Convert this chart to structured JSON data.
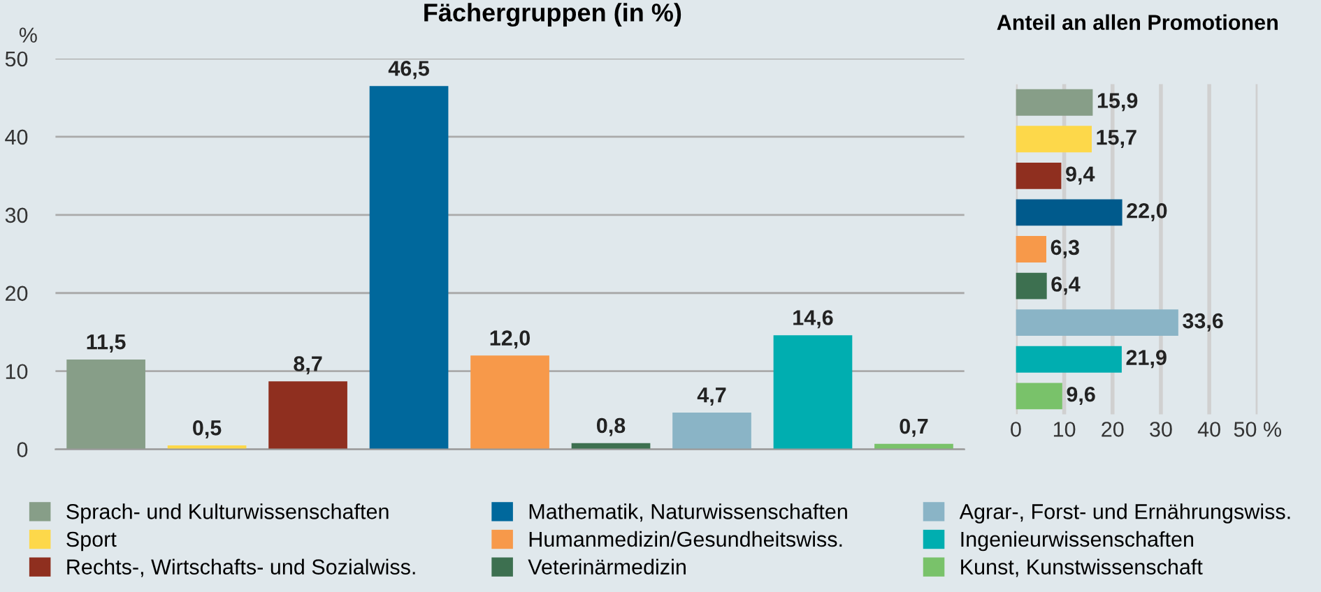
{
  "chart_data": [
    {
      "type": "bar",
      "title": "Fächergruppen (in %)",
      "ylabel": "%",
      "categories": [
        null
      ],
      "ylim": [
        0,
        50
      ],
      "yticks": [
        0,
        10,
        20,
        30,
        40,
        50
      ],
      "grid": "y",
      "legend": "bottom",
      "series": [
        {
          "name": "Sprach- und Kulturwissenschaften",
          "color": "#879e88",
          "values": [
            11.5
          ],
          "value_labels": [
            "11,5"
          ]
        },
        {
          "name": "Sport",
          "color": "#fdd84a",
          "values": [
            0.5
          ],
          "value_labels": [
            "0,5"
          ]
        },
        {
          "name": "Rechts-, Wirtschafts- und Sozialwiss.",
          "color": "#8f2f1f",
          "values": [
            8.7
          ],
          "value_labels": [
            "8,7"
          ]
        },
        {
          "name": "Mathematik, Naturwissenschaften",
          "color": "#00689c",
          "values": [
            46.5
          ],
          "value_labels": [
            "46,5"
          ]
        },
        {
          "name": "Humanmedizin/Gesundheitswiss.",
          "color": "#f7994a",
          "values": [
            12.0
          ],
          "value_labels": [
            "12,0"
          ]
        },
        {
          "name": "Veterinärmedizin",
          "color": "#3d7050",
          "values": [
            0.8
          ],
          "value_labels": [
            "0,8"
          ]
        },
        {
          "name": "Agrar-, Forst- und Ernährungswiss.",
          "color": "#8ab4c6",
          "values": [
            4.7
          ],
          "value_labels": [
            "4,7"
          ]
        },
        {
          "name": "Ingenieurwissenschaften",
          "color": "#00aeb0",
          "values": [
            14.6
          ],
          "value_labels": [
            "14,6"
          ]
        },
        {
          "name": "Kunst, Kunstwissenschaft",
          "color": "#79c26a",
          "values": [
            0.7
          ],
          "value_labels": [
            "0,7"
          ]
        }
      ]
    },
    {
      "type": "bar",
      "orientation": "horizontal",
      "title": "Anteil an allen Promotionen",
      "categories": [
        null,
        null,
        null,
        null,
        null,
        null,
        null,
        null,
        null
      ],
      "values": [
        15.9,
        15.7,
        9.4,
        22.0,
        6.3,
        6.4,
        33.6,
        21.9,
        9.6
      ],
      "value_labels": [
        "15,9",
        "15,7",
        "9,4",
        "22,0",
        "6,3",
        "6,4",
        "33,6",
        "21,9",
        "9,6"
      ],
      "colors": [
        "#879e88",
        "#fdd84a",
        "#8f2f1f",
        "#005a8c",
        "#f7994a",
        "#3d7050",
        "#8ab4c6",
        "#00aeb0",
        "#79c26a"
      ],
      "xlim": [
        0,
        50
      ],
      "xticks": [
        0,
        10,
        20,
        30,
        40,
        {
          "value": 50,
          "label": "50 %"
        }
      ],
      "grid": "x"
    }
  ]
}
